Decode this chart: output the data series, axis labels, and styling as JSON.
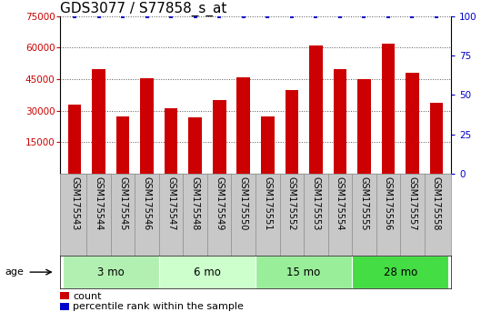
{
  "title": "GDS3077 / S77858_s_at",
  "samples": [
    "GSM175543",
    "GSM175544",
    "GSM175545",
    "GSM175546",
    "GSM175547",
    "GSM175548",
    "GSM175549",
    "GSM175550",
    "GSM175551",
    "GSM175552",
    "GSM175553",
    "GSM175554",
    "GSM175555",
    "GSM175556",
    "GSM175557",
    "GSM175558"
  ],
  "counts": [
    33000,
    50000,
    27500,
    45500,
    31000,
    27000,
    35000,
    46000,
    27500,
    40000,
    61000,
    50000,
    45000,
    62000,
    48000,
    34000
  ],
  "percentile": [
    100,
    100,
    100,
    100,
    100,
    100,
    100,
    100,
    100,
    100,
    100,
    100,
    100,
    100,
    100,
    100
  ],
  "bar_color": "#cc0000",
  "percentile_color": "#0000cc",
  "ylim_left": [
    0,
    75000
  ],
  "ylim_right": [
    0,
    100
  ],
  "yticks_left": [
    15000,
    30000,
    45000,
    60000,
    75000
  ],
  "yticks_right": [
    0,
    25,
    50,
    75,
    100
  ],
  "groups": [
    {
      "label": "3 mo",
      "start": 0,
      "end": 4,
      "color": "#b2f0b2"
    },
    {
      "label": "6 mo",
      "start": 4,
      "end": 8,
      "color": "#ccffcc"
    },
    {
      "label": "15 mo",
      "start": 8,
      "end": 12,
      "color": "#99ee99"
    },
    {
      "label": "28 mo",
      "start": 12,
      "end": 16,
      "color": "#44dd44"
    }
  ],
  "age_label": "age",
  "legend_count_label": "count",
  "legend_percentile_label": "percentile rank within the sample",
  "background_color": "#ffffff",
  "tick_label_color_left": "#cc0000",
  "tick_label_color_right": "#0000cc",
  "title_fontsize": 11,
  "bar_width": 0.55,
  "label_fontsize": 7,
  "gray_bg": "#c8c8c8"
}
